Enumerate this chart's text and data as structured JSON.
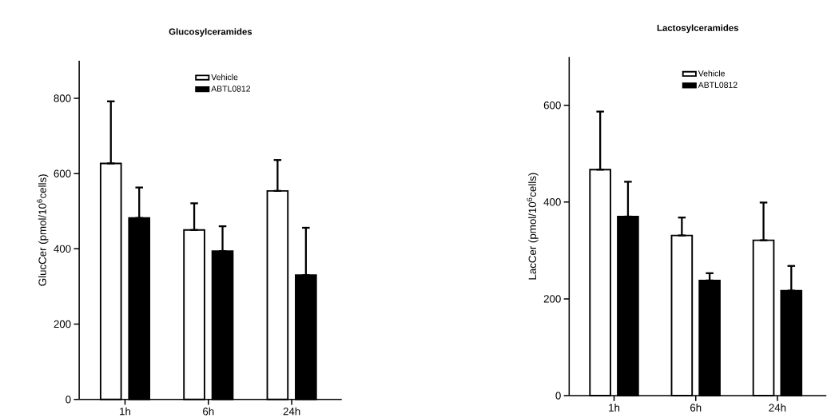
{
  "chart_data": [
    {
      "type": "bar",
      "title": "Glucosylceramides",
      "ylabel": "GlucCer  (pmol/10$^{6}$cells)",
      "categories": [
        "1h",
        "6h",
        "24h"
      ],
      "series": [
        {
          "name": "Vehicle",
          "color": "#ffffff",
          "values": [
            627,
            450,
            554
          ],
          "errors": [
            [
              627,
              792
            ],
            [
              450,
              521
            ],
            [
              554,
              636
            ]
          ]
        },
        {
          "name": "ABTL0812",
          "color": "#000000",
          "values": [
            482,
            394,
            330
          ],
          "errors": [
            [
              482,
              563
            ],
            [
              394,
              460
            ],
            [
              330,
              456
            ]
          ]
        }
      ],
      "ylim": [
        0,
        900
      ],
      "yticks": [
        0,
        200,
        400,
        600,
        800
      ],
      "legend": "top"
    },
    {
      "type": "bar",
      "title": "Lactosylceramides",
      "ylabel": "LacCer (pmol/10$^{6}$cells)",
      "categories": [
        "1h",
        "6h",
        "24h"
      ],
      "series": [
        {
          "name": "Vehicle",
          "color": "#ffffff",
          "values": [
            467,
            331,
            321
          ],
          "errors": [
            [
              467,
              587
            ],
            [
              331,
              368
            ],
            [
              321,
              399
            ]
          ]
        },
        {
          "name": "ABTL0812",
          "color": "#000000",
          "values": [
            370,
            238,
            217
          ],
          "errors": [
            [
              370,
              442
            ],
            [
              238,
              253
            ],
            [
              217,
              268
            ]
          ]
        }
      ],
      "ylim": [
        0,
        700
      ],
      "yticks": [
        0,
        200,
        400,
        600
      ],
      "legend": "top"
    }
  ]
}
